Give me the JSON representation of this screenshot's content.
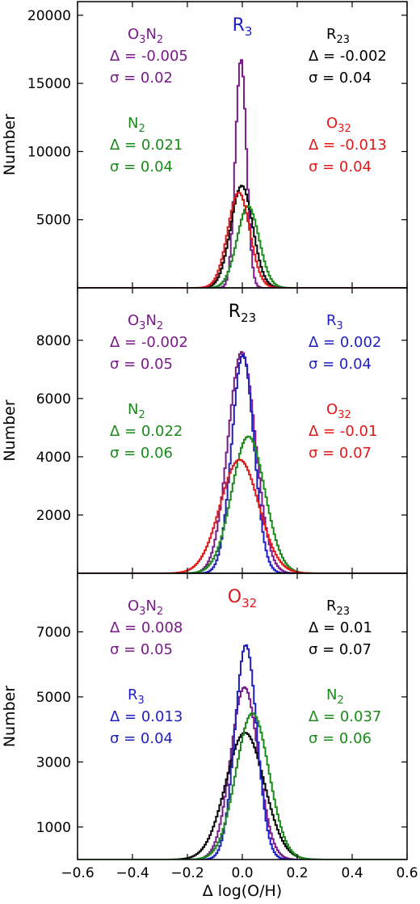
{
  "figure": {
    "xlabel": "Δ log(O/H)",
    "xlim": [
      -0.6,
      0.6
    ],
    "xticks": [
      "−0.6",
      "−0.4",
      "−0.2",
      "0.0",
      "0.2",
      "0.4",
      "0.6"
    ],
    "xtick_values": [
      -0.6,
      -0.4,
      -0.2,
      0.0,
      0.2,
      0.4,
      0.6
    ]
  },
  "colors": {
    "R3": "#1f1fbf",
    "R23": "#000000",
    "O32": "#e01818",
    "N2": "#1a8a1a",
    "O3N2": "#7a1a8a"
  },
  "chart_data": [
    {
      "type": "histogram",
      "title": {
        "main": "R",
        "sub": "3",
        "color_key": "R3"
      },
      "ylabel": "Number",
      "ylim": [
        0,
        21000
      ],
      "yticks": [
        5000,
        10000,
        15000,
        20000
      ],
      "series": [
        {
          "key": "O3N2",
          "center": -0.005,
          "sigma": 0.02,
          "peak": 16800
        },
        {
          "key": "R23",
          "center": -0.002,
          "sigma": 0.04,
          "peak": 7500
        },
        {
          "key": "N2",
          "center": 0.021,
          "sigma": 0.04,
          "peak": 6000
        },
        {
          "key": "O32",
          "center": -0.013,
          "sigma": 0.04,
          "peak": 7000
        }
      ],
      "annotations": [
        {
          "key": "O3N2",
          "label_parts": [
            [
              "O",
              ""
            ],
            [
              "3",
              "sub"
            ],
            [
              "N",
              ""
            ],
            [
              "2",
              "sub"
            ]
          ],
          "delta": "Δ = -0.005",
          "sigma": "σ = 0.02",
          "pos": "upper-left"
        },
        {
          "key": "R23",
          "label_parts": [
            [
              "R",
              ""
            ],
            [
              "23",
              "sub"
            ]
          ],
          "delta": "Δ = -0.002",
          "sigma": "σ = 0.04",
          "pos": "upper-right"
        },
        {
          "key": "N2",
          "label_parts": [
            [
              "N",
              ""
            ],
            [
              "2",
              "sub"
            ]
          ],
          "delta": "Δ = 0.021",
          "sigma": "σ = 0.04",
          "pos": "lower-left"
        },
        {
          "key": "O32",
          "label_parts": [
            [
              "O",
              ""
            ],
            [
              "32",
              "sub"
            ]
          ],
          "delta": "Δ = -0.013",
          "sigma": "σ = 0.04",
          "pos": "lower-right"
        }
      ]
    },
    {
      "type": "histogram",
      "title": {
        "main": "R",
        "sub": "23",
        "color_key": "R23"
      },
      "ylabel": "Number",
      "ylim": [
        0,
        9800
      ],
      "yticks": [
        2000,
        4000,
        6000,
        8000
      ],
      "series": [
        {
          "key": "O3N2",
          "center": -0.002,
          "sigma": 0.05,
          "peak": 7600
        },
        {
          "key": "R3",
          "center": 0.002,
          "sigma": 0.04,
          "peak": 7500
        },
        {
          "key": "N2",
          "center": 0.022,
          "sigma": 0.06,
          "peak": 4700
        },
        {
          "key": "O32",
          "center": -0.01,
          "sigma": 0.07,
          "peak": 3900
        }
      ],
      "annotations": [
        {
          "key": "O3N2",
          "label_parts": [
            [
              "O",
              ""
            ],
            [
              "3",
              "sub"
            ],
            [
              "N",
              ""
            ],
            [
              "2",
              "sub"
            ]
          ],
          "delta": "Δ = -0.002",
          "sigma": "σ = 0.05",
          "pos": "upper-left"
        },
        {
          "key": "R3",
          "label_parts": [
            [
              "R",
              ""
            ],
            [
              "3",
              "sub"
            ]
          ],
          "delta": "Δ = 0.002",
          "sigma": "σ = 0.04",
          "pos": "upper-right"
        },
        {
          "key": "N2",
          "label_parts": [
            [
              "N",
              ""
            ],
            [
              "2",
              "sub"
            ]
          ],
          "delta": "Δ = 0.022",
          "sigma": "σ = 0.06",
          "pos": "lower-left"
        },
        {
          "key": "O32",
          "label_parts": [
            [
              "O",
              ""
            ],
            [
              "32",
              "sub"
            ]
          ],
          "delta": "Δ = -0.01",
          "sigma": "σ = 0.07",
          "pos": "lower-right"
        }
      ]
    },
    {
      "type": "histogram",
      "title": {
        "main": "O",
        "sub": "32",
        "color_key": "O32"
      },
      "ylabel": "Number",
      "ylim": [
        0,
        8800
      ],
      "yticks": [
        1000,
        3000,
        5000,
        7000
      ],
      "series": [
        {
          "key": "O3N2",
          "center": 0.008,
          "sigma": 0.05,
          "peak": 5300
        },
        {
          "key": "R23",
          "center": 0.01,
          "sigma": 0.07,
          "peak": 3900
        },
        {
          "key": "R3",
          "center": 0.013,
          "sigma": 0.04,
          "peak": 6600
        },
        {
          "key": "N2",
          "center": 0.037,
          "sigma": 0.06,
          "peak": 4500
        }
      ],
      "annotations": [
        {
          "key": "O3N2",
          "label_parts": [
            [
              "O",
              ""
            ],
            [
              "3",
              "sub"
            ],
            [
              "N",
              ""
            ],
            [
              "2",
              "sub"
            ]
          ],
          "delta": "Δ = 0.008",
          "sigma": "σ = 0.05",
          "pos": "upper-left"
        },
        {
          "key": "R23",
          "label_parts": [
            [
              "R",
              ""
            ],
            [
              "23",
              "sub"
            ]
          ],
          "delta": "Δ = 0.01",
          "sigma": "σ = 0.07",
          "pos": "upper-right"
        },
        {
          "key": "R3",
          "label_parts": [
            [
              "R",
              ""
            ],
            [
              "3",
              "sub"
            ]
          ],
          "delta": "Δ = 0.013",
          "sigma": "σ = 0.04",
          "pos": "lower-left"
        },
        {
          "key": "N2",
          "label_parts": [
            [
              "N",
              ""
            ],
            [
              "2",
              "sub"
            ]
          ],
          "delta": "Δ = 0.037",
          "sigma": "σ = 0.06",
          "pos": "lower-right"
        }
      ]
    }
  ]
}
